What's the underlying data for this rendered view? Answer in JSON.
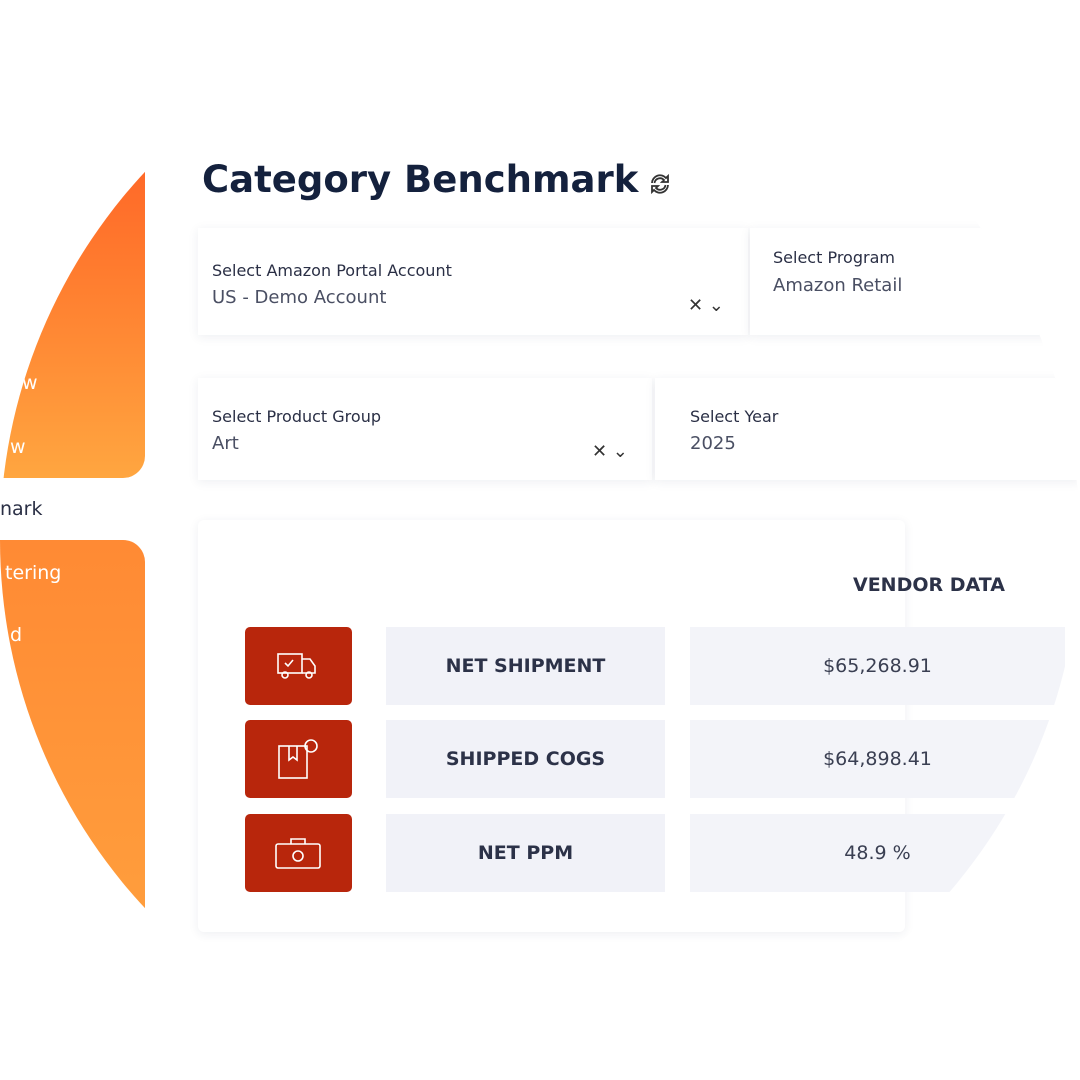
{
  "sidebar": {
    "items": [
      "w",
      "w",
      "nark",
      "tering",
      "d"
    ]
  },
  "header": {
    "title": "Category Benchmark"
  },
  "filters": [
    {
      "label": "Select Amazon Portal Account",
      "value": "US - Demo Account"
    },
    {
      "label": "Select Program",
      "value": "Amazon Retail"
    },
    {
      "label": "Select Product Group",
      "value": "Art"
    },
    {
      "label": "Select Year",
      "value": "2025"
    }
  ],
  "table": {
    "column_header": "VENDOR DATA",
    "rows": [
      [
        "NET SHIPMENT",
        "$65,268.91"
      ],
      [
        "SHIPPED COGS",
        "$64,898.41"
      ],
      [
        "NET PPM",
        "48.9 %"
      ]
    ]
  }
}
